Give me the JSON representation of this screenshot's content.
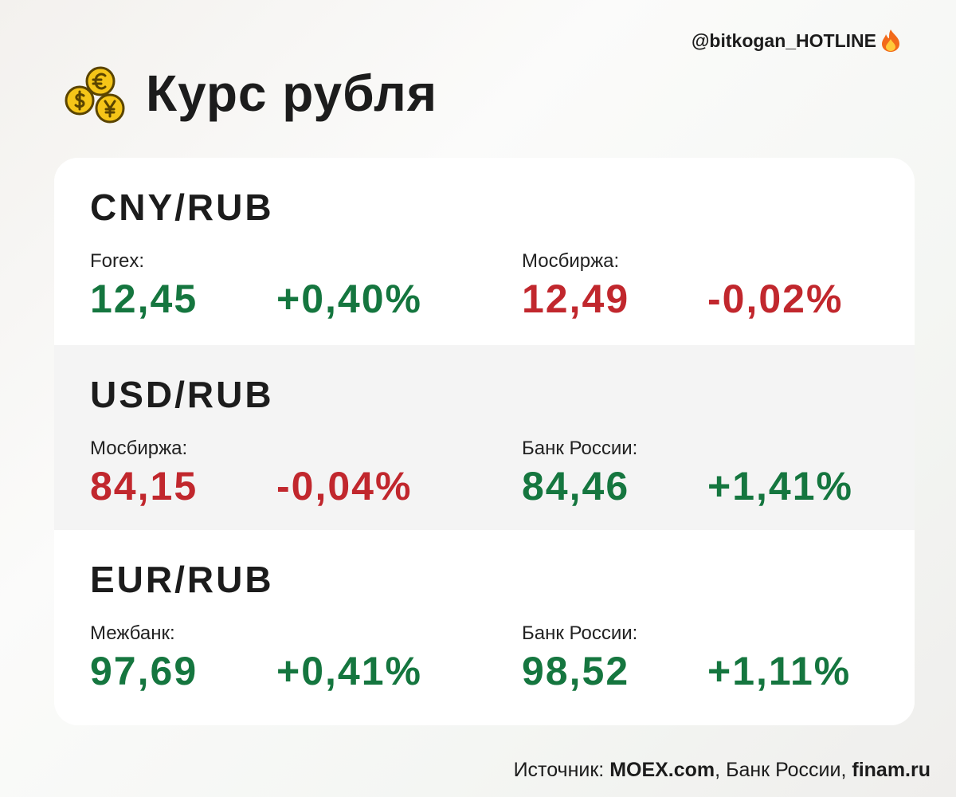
{
  "header": {
    "handle": "@bitkogan_HOTLINE",
    "title": "Курс рубля"
  },
  "sections": [
    {
      "pair": "CNY/RUB",
      "quotes": [
        {
          "source": "Forex:",
          "value": "12,45",
          "change": "+0,40%",
          "color": "#15763f",
          "change_color": "#15763f"
        },
        {
          "source": "Мосбиржа:",
          "value": "12,49",
          "change": "-0,02%",
          "color": "#c1272d",
          "change_color": "#c1272d"
        }
      ]
    },
    {
      "pair": "USD/RUB",
      "quotes": [
        {
          "source": "Мосбиржа:",
          "value": "84,15",
          "change": "-0,04%",
          "color": "#c1272d",
          "change_color": "#c1272d"
        },
        {
          "source": "Банк России:",
          "value": "84,46",
          "change": "+1,41%",
          "color": "#15763f",
          "change_color": "#15763f"
        }
      ]
    },
    {
      "pair": "EUR/RUB",
      "quotes": [
        {
          "source": "Межбанк:",
          "value": "97,69",
          "change": "+0,41%",
          "color": "#15763f",
          "change_color": "#15763f"
        },
        {
          "source": "Банк России:",
          "value": "98,52",
          "change": "+1,11%",
          "color": "#15763f",
          "change_color": "#15763f"
        }
      ]
    }
  ],
  "footer": {
    "parts": [
      {
        "text": "Источник: "
      },
      {
        "text": "MOEX.com",
        "bold": true
      },
      {
        "text": ", Банк России, "
      },
      {
        "text": "finam.ru",
        "bold": true
      }
    ]
  }
}
